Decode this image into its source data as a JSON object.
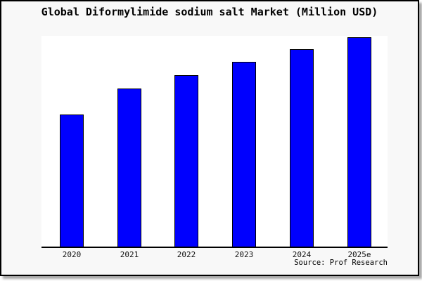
{
  "chart": {
    "title": "Global Diformylimide sodium salt Market (Million USD)",
    "source": "Source: Prof Research"
  },
  "chart_data": {
    "type": "bar",
    "title": "Global Diformylimide sodium salt Market (Million USD)",
    "categories": [
      "2020",
      "2021",
      "2022",
      "2023",
      "2024",
      "2025e"
    ],
    "values": [
      63.2,
      75.6,
      81.9,
      88.3,
      94.3,
      100
    ],
    "values_note": "no y-axis labels shown; values are relative estimates with 2025e = 100",
    "xlabel": "",
    "ylabel": "",
    "ylim": [
      0,
      100.7
    ],
    "grid": false,
    "legend": false,
    "bar_color": "#0000FE",
    "bar_border_color": "#000000",
    "plot_background": "#ffffff",
    "canvas_background": "#f8f8f8",
    "frame_color": "#000000",
    "source": "Source: Prof Research"
  }
}
